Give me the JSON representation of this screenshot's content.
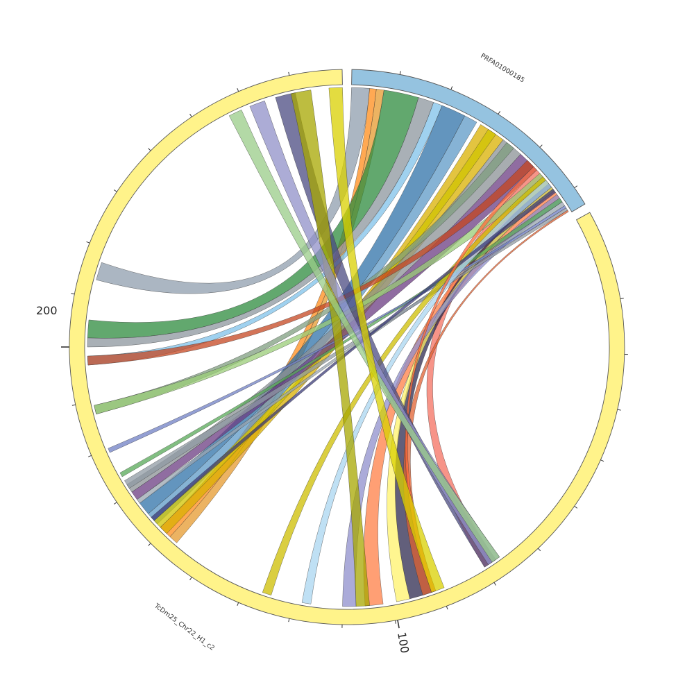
{
  "diagram": {
    "type": "circos-chord",
    "segments": [
      {
        "name": "PRFA01000185",
        "color": "#95c3e0"
      },
      {
        "name": "TcDm25_Chr22_H1_c2",
        "color": "#fff38a"
      }
    ],
    "tick_labels": [
      {
        "text": "100"
      },
      {
        "text": "200"
      }
    ],
    "link_colors": [
      "#8f9ead",
      "#ff8c1a",
      "#e69a2e",
      "#2e8b3e",
      "#8c969e",
      "#7fc1ea",
      "#2f72a8",
      "#5e9ac7",
      "#d9b000",
      "#d0c400",
      "#8b9196",
      "#7f9e7f",
      "#6b3c82",
      "#f47060",
      "#ff7f45",
      "#2e2a4f",
      "#fff36b",
      "#8f8fcc",
      "#9aa6b0",
      "#57a857",
      "#c44520",
      "#99cc77",
      "#6f7fc4",
      "#8f99a3",
      "#cdbd00",
      "#aad6f0",
      "#e06030",
      "#3b3b78",
      "#ff6a3a"
    ]
  }
}
